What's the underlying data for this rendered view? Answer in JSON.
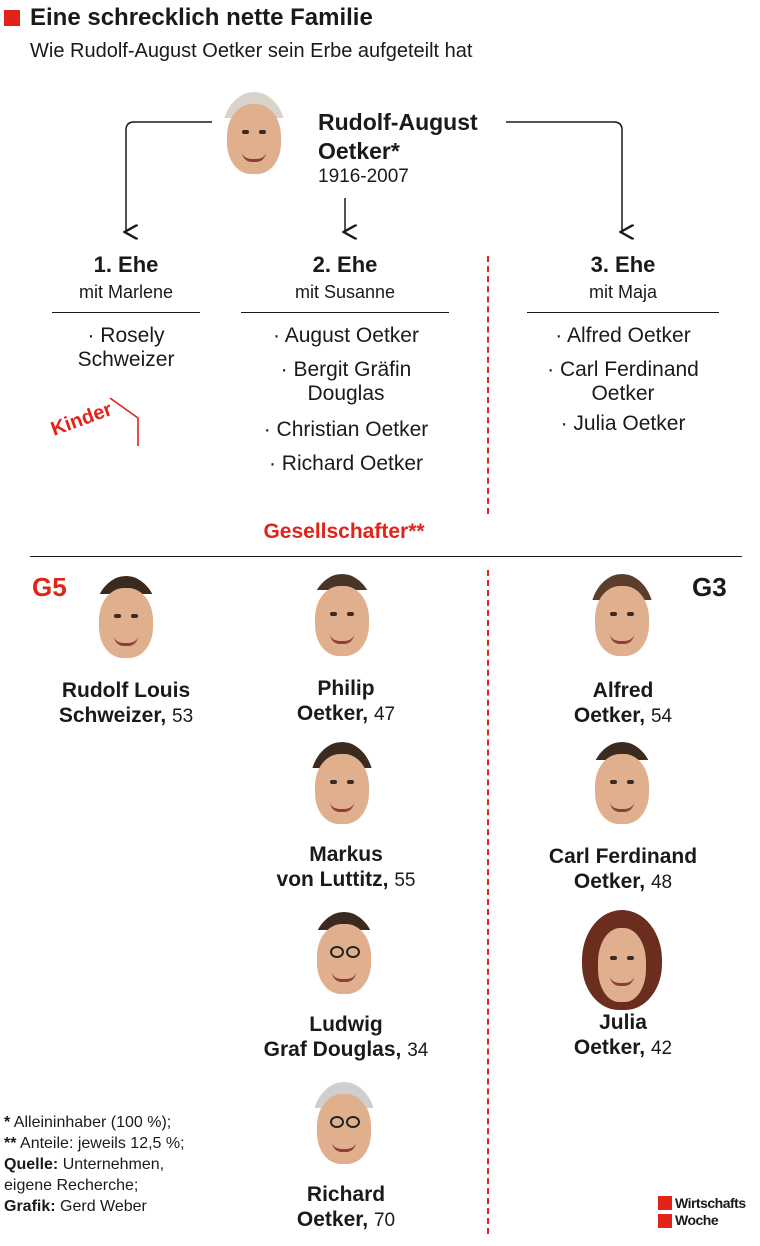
{
  "header": {
    "title": "Eine schrecklich nette Familie",
    "subtitle": "Wie Rudolf-August Oetker sein Erbe aufgeteilt hat"
  },
  "founder": {
    "name_line1": "Rudolf-August",
    "name_line2": "Oetker*",
    "years": "1916-2007"
  },
  "marriages": [
    {
      "title": "1. Ehe",
      "partner": "mit Marlene",
      "children": [
        [
          "· Rosely",
          "Schweizer"
        ]
      ]
    },
    {
      "title": "2. Ehe",
      "partner": "mit Susanne",
      "children": [
        [
          "· August Oetker"
        ],
        [
          "· Bergit Gräfin",
          "Douglas"
        ],
        [
          "· Christian Oetker"
        ],
        [
          "· Richard Oetker"
        ]
      ]
    },
    {
      "title": "3. Ehe",
      "partner": "mit Maja",
      "children": [
        [
          "· Alfred Oetker"
        ],
        [
          "· Carl Ferdinand",
          "Oetker"
        ],
        [
          "· Julia Oetker"
        ]
      ]
    }
  ],
  "labels": {
    "kinder": "Kinder",
    "gesellschafter": "Gesellschafter**",
    "g5": "G5",
    "g3": "G3"
  },
  "shareholders": {
    "g5": [
      {
        "line1": "Rudolf Louis",
        "line2": "Schweizer,",
        "age": "53"
      },
      {
        "line1": "Philip",
        "line2": "Oetker,",
        "age": "47"
      },
      {
        "line1": "Markus",
        "line2": "von Luttitz,",
        "age": "55"
      },
      {
        "line1": "Ludwig",
        "line2": "Graf Douglas,",
        "age": "34"
      },
      {
        "line1": "Richard",
        "line2": "Oetker,",
        "age": "70"
      }
    ],
    "g3": [
      {
        "line1": "Alfred",
        "line2": "Oetker,",
        "age": "54"
      },
      {
        "line1": "Carl Ferdinand",
        "line2": "Oetker,",
        "age": "48"
      },
      {
        "line1": "Julia",
        "line2": "Oetker,",
        "age": "42"
      }
    ]
  },
  "footnotes": {
    "f1_mark": "*",
    "f1_text": "Alleininhaber (100 %);",
    "f2_mark": "**",
    "f2_text": "Anteile: jeweils 12,5 %;",
    "source_label": "Quelle:",
    "source_text": "Unternehmen,",
    "source_text2": "eigene Recherche;",
    "graphic_label": "Grafik:",
    "graphic_text": "Gerd Weber"
  },
  "logo": {
    "line1": "Wirtschafts",
    "line2": "Woche"
  },
  "colors": {
    "accent": "#e2231a",
    "text": "#1a1a1a"
  }
}
